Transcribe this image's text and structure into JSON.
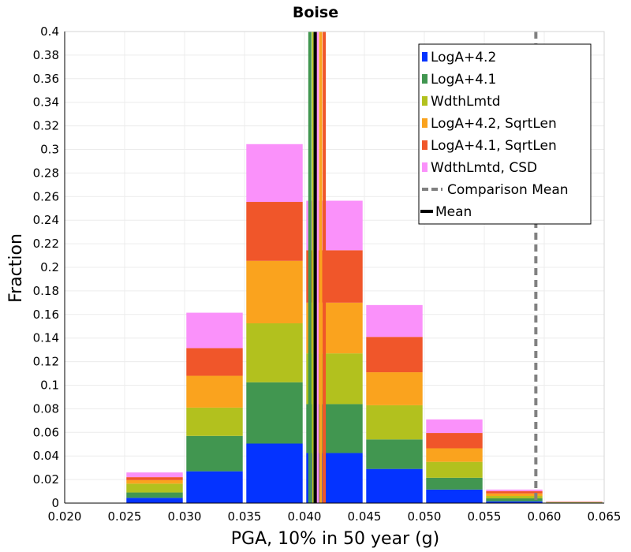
{
  "chart_data": {
    "type": "bar",
    "stacked": true,
    "title": "Boise",
    "xlabel": "PGA, 10% in 50 year (g)",
    "ylabel": "Fraction",
    "xlim": [
      0.02,
      0.065
    ],
    "ylim": [
      0,
      0.4
    ],
    "xticks": [
      "0.020",
      "0.025",
      "0.030",
      "0.035",
      "0.040",
      "0.045",
      "0.050",
      "0.055",
      "0.060",
      "0.065"
    ],
    "yticks": [
      "0",
      "0.02",
      "0.04",
      "0.06",
      "0.08",
      "0.1",
      "0.12",
      "0.14",
      "0.16",
      "0.18",
      "0.2",
      "0.22",
      "0.24",
      "0.26",
      "0.28",
      "0.3",
      "0.32",
      "0.34",
      "0.36",
      "0.38",
      "0.4"
    ],
    "grid": true,
    "legend_position": "top-right",
    "bin_centers": [
      0.0225,
      0.0275,
      0.0325,
      0.0375,
      0.0425,
      0.0475,
      0.0525,
      0.0575,
      0.0625
    ],
    "bin_width": 0.005,
    "series": [
      {
        "name": "LogA+4.2",
        "color": "#0433ff",
        "values": [
          0,
          0.0045,
          0.027,
          0.0505,
          0.0425,
          0.029,
          0.0115,
          0.0015,
          0.0002
        ]
      },
      {
        "name": "LogA+4.1",
        "color": "#419650",
        "values": [
          0,
          0.0045,
          0.03,
          0.052,
          0.0415,
          0.025,
          0.01,
          0.0025,
          0.0003
        ]
      },
      {
        "name": "WdthLmtd",
        "color": "#b2c11e",
        "values": [
          0,
          0.0075,
          0.024,
          0.05,
          0.043,
          0.029,
          0.0135,
          0.002,
          0.0003
        ]
      },
      {
        "name": "LogA+4.2, SqrtLen",
        "color": "#faa31e",
        "values": [
          0,
          0.003,
          0.027,
          0.053,
          0.043,
          0.028,
          0.0115,
          0.0022,
          0.0002
        ]
      },
      {
        "name": "LogA+4.1, SqrtLen",
        "color": "#f0562a",
        "values": [
          0,
          0.0025,
          0.0235,
          0.05,
          0.0445,
          0.03,
          0.013,
          0.002,
          0.0002
        ]
      },
      {
        "name": "WdthLmtd, CSD",
        "color": "#fa91fa",
        "values": [
          0,
          0.004,
          0.03,
          0.049,
          0.042,
          0.027,
          0.0115,
          0.0013,
          0.0003
        ]
      }
    ],
    "mean_lines": [
      {
        "color": "#419650",
        "x": 0.04045
      },
      {
        "color": "#b2c11e",
        "x": 0.04075
      },
      {
        "color": "#0433ff",
        "x": 0.0409
      },
      {
        "color": "#fa91fa",
        "x": 0.04105
      },
      {
        "color": "#faa31e",
        "x": 0.04135
      },
      {
        "color": "#f0562a",
        "x": 0.04165
      }
    ],
    "mean": 0.0409,
    "comparison_mean": 0.0593,
    "legend_extra": [
      {
        "name": "Comparison Mean",
        "style": "dashed",
        "color": "#808080"
      },
      {
        "name": "Mean",
        "style": "solid",
        "color": "#000000"
      }
    ]
  }
}
